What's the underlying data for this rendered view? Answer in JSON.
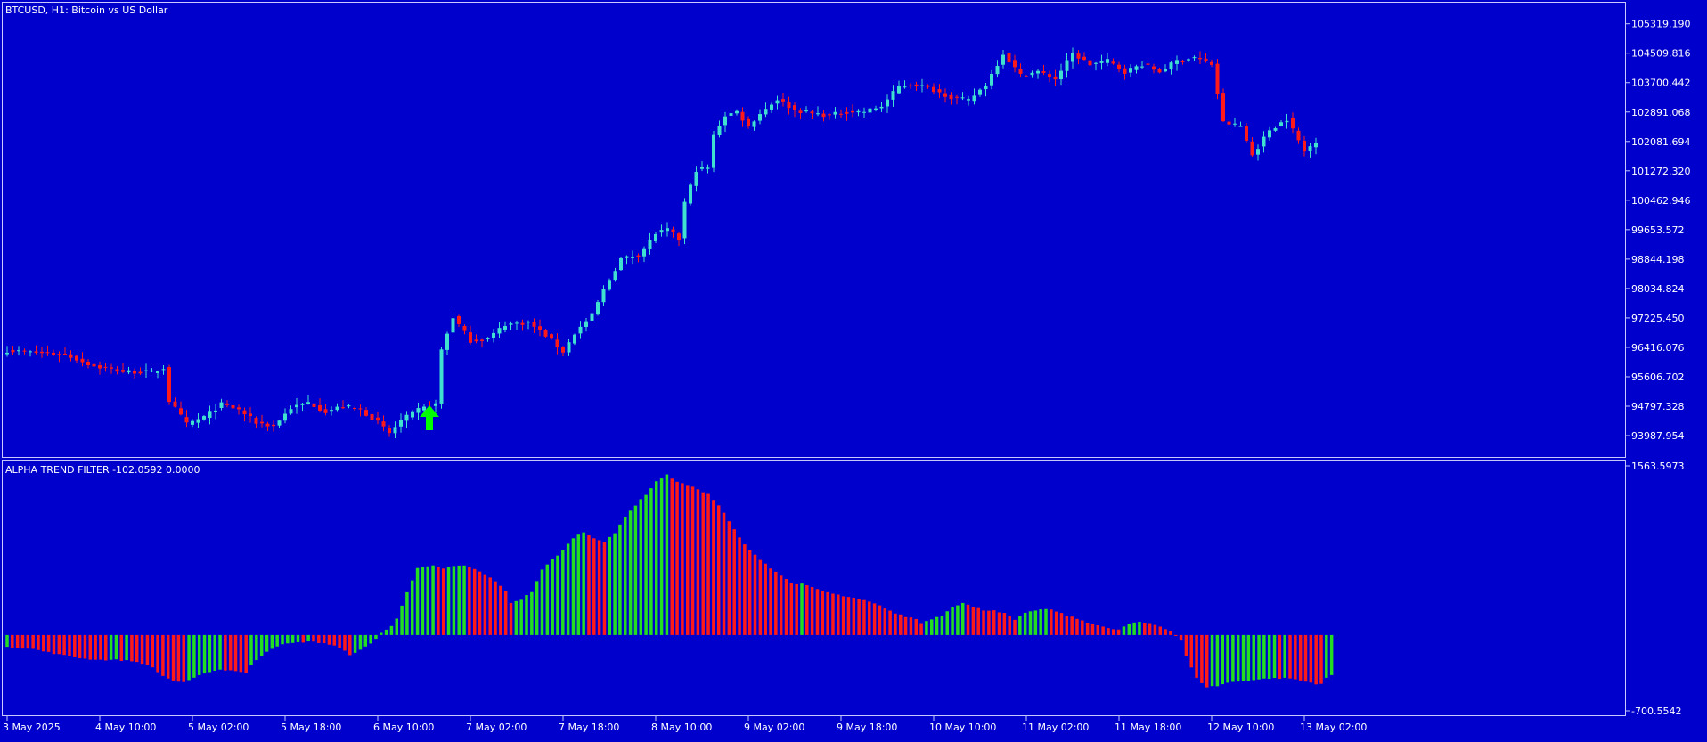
{
  "colors": {
    "background": "#0000cc",
    "frame": "#c8c8ff",
    "text": "#ffffff",
    "bull_candle": "#40e0d0",
    "bear_candle": "#ff1a1a",
    "hist_up": "#22dd22",
    "hist_down": "#ff1a1a",
    "signal_arrow": "#00ff00"
  },
  "price_panel": {
    "title": "BTCUSD, H1:  Bitcoin vs US Dollar"
  },
  "indicator_panel": {
    "title": "ALPHA TREND FILTER -102.0592 0.0000"
  },
  "chart_data": [
    {
      "type": "candlestick",
      "title": "BTCUSD, H1:  Bitcoin vs US Dollar",
      "ylim": [
        93400,
        105900
      ],
      "y_tick_labels": [
        "105319.190",
        "104509.816",
        "103700.442",
        "102891.068",
        "102081.694",
        "101272.320",
        "100462.946",
        "99653.572",
        "98844.198",
        "98034.824",
        "97225.450",
        "96416.076",
        "95606.702",
        "94797.328",
        "93987.954"
      ],
      "x_tick_labels": [
        "3 May 2025",
        "4 May 10:00",
        "5 May 02:00",
        "5 May 18:00",
        "6 May 10:00",
        "7 May 02:00",
        "7 May 18:00",
        "8 May 10:00",
        "9 May 02:00",
        "9 May 18:00",
        "10 May 10:00",
        "11 May 02:00",
        "11 May 18:00",
        "12 May 10:00",
        "13 May 02:00"
      ],
      "x_tick_candle_index": [
        0,
        16,
        32,
        48,
        64,
        80,
        96,
        112,
        128,
        144,
        160,
        176,
        192,
        208,
        224
      ],
      "close_anchors": [
        [
          0,
          96330
        ],
        [
          5,
          96270
        ],
        [
          10,
          96220
        ],
        [
          15,
          95900
        ],
        [
          20,
          95750
        ],
        [
          25,
          95730
        ],
        [
          27,
          95850
        ],
        [
          28,
          94950
        ],
        [
          31,
          94300
        ],
        [
          34,
          94500
        ],
        [
          37,
          94850
        ],
        [
          40,
          94700
        ],
        [
          43,
          94350
        ],
        [
          46,
          94250
        ],
        [
          49,
          94750
        ],
        [
          52,
          94900
        ],
        [
          55,
          94650
        ],
        [
          58,
          94800
        ],
        [
          61,
          94700
        ],
        [
          64,
          94350
        ],
        [
          66,
          94050
        ],
        [
          68,
          94400
        ],
        [
          71,
          94700
        ],
        [
          74,
          94850
        ],
        [
          75,
          96350
        ],
        [
          77,
          97250
        ],
        [
          80,
          96600
        ],
        [
          83,
          96650
        ],
        [
          86,
          97050
        ],
        [
          90,
          97100
        ],
        [
          93,
          96750
        ],
        [
          96,
          96300
        ],
        [
          98,
          96800
        ],
        [
          101,
          97300
        ],
        [
          103,
          98000
        ],
        [
          106,
          98850
        ],
        [
          109,
          98950
        ],
        [
          112,
          99550
        ],
        [
          114,
          99650
        ],
        [
          116,
          99400
        ],
        [
          117,
          100400
        ],
        [
          119,
          101300
        ],
        [
          121,
          101350
        ],
        [
          122,
          102250
        ],
        [
          124,
          102800
        ],
        [
          126,
          102900
        ],
        [
          128,
          102500
        ],
        [
          130,
          102850
        ],
        [
          133,
          103250
        ],
        [
          136,
          102950
        ],
        [
          139,
          102850
        ],
        [
          142,
          102800
        ],
        [
          145,
          102900
        ],
        [
          148,
          102900
        ],
        [
          151,
          103050
        ],
        [
          154,
          103600
        ],
        [
          157,
          103650
        ],
        [
          160,
          103500
        ],
        [
          163,
          103300
        ],
        [
          166,
          103200
        ],
        [
          169,
          103650
        ],
        [
          172,
          104500
        ],
        [
          175,
          103900
        ],
        [
          178,
          104000
        ],
        [
          181,
          103800
        ],
        [
          184,
          104500
        ],
        [
          187,
          104200
        ],
        [
          190,
          104300
        ],
        [
          193,
          104000
        ],
        [
          196,
          104200
        ],
        [
          199,
          104000
        ],
        [
          202,
          104300
        ],
        [
          205,
          104400
        ],
        [
          208,
          104200
        ],
        [
          210,
          102600
        ],
        [
          213,
          102500
        ],
        [
          215,
          101700
        ],
        [
          218,
          102400
        ],
        [
          221,
          102700
        ],
        [
          224,
          101800
        ],
        [
          226,
          102100
        ]
      ],
      "buy_arrow_candle_index": 72
    },
    {
      "type": "histogram",
      "title": "ALPHA TREND FILTER -102.0592 0.0000",
      "series_value": -102.0592,
      "zero_line_value": 0.0,
      "ylim": [
        -700.5542,
        1563.5973
      ],
      "y_tick_labels": [
        "1563.5973",
        "-700.5542"
      ],
      "value_anchors": [
        [
          0,
          -105
        ],
        [
          5,
          -130
        ],
        [
          10,
          -180
        ],
        [
          15,
          -220
        ],
        [
          18,
          -230
        ],
        [
          21,
          -230
        ],
        [
          24,
          -240
        ],
        [
          26,
          -260
        ],
        [
          28,
          -300
        ],
        [
          30,
          -380
        ],
        [
          32,
          -420
        ],
        [
          34,
          -440
        ],
        [
          36,
          -400
        ],
        [
          38,
          -350
        ],
        [
          41,
          -320
        ],
        [
          44,
          -330
        ],
        [
          46,
          -350
        ],
        [
          47,
          -280
        ],
        [
          48,
          -230
        ],
        [
          50,
          -150
        ],
        [
          52,
          -100
        ],
        [
          54,
          -80
        ],
        [
          58,
          -60
        ],
        [
          61,
          -75
        ],
        [
          63,
          -100
        ],
        [
          65,
          -150
        ],
        [
          66,
          -180
        ],
        [
          68,
          -140
        ],
        [
          70,
          -80
        ],
        [
          72,
          20
        ],
        [
          74,
          80
        ],
        [
          75,
          150
        ],
        [
          77,
          400
        ],
        [
          79,
          620
        ],
        [
          82,
          640
        ],
        [
          84,
          610
        ],
        [
          86,
          640
        ],
        [
          88,
          640
        ],
        [
          90,
          610
        ],
        [
          92,
          560
        ],
        [
          94,
          500
        ],
        [
          96,
          400
        ],
        [
          97,
          300
        ],
        [
          99,
          330
        ],
        [
          101,
          400
        ],
        [
          103,
          600
        ],
        [
          105,
          700
        ],
        [
          107,
          780
        ],
        [
          109,
          900
        ],
        [
          111,
          950
        ],
        [
          113,
          900
        ],
        [
          115,
          860
        ],
        [
          117,
          940
        ],
        [
          119,
          1100
        ],
        [
          121,
          1200
        ],
        [
          123,
          1300
        ],
        [
          125,
          1420
        ],
        [
          127,
          1480
        ],
        [
          129,
          1420
        ],
        [
          131,
          1380
        ],
        [
          133,
          1350
        ],
        [
          135,
          1300
        ],
        [
          137,
          1200
        ],
        [
          139,
          1050
        ],
        [
          141,
          900
        ],
        [
          143,
          780
        ],
        [
          145,
          700
        ],
        [
          147,
          620
        ],
        [
          149,
          550
        ],
        [
          151,
          480
        ],
        [
          153,
          470
        ],
        [
          155,
          440
        ],
        [
          157,
          410
        ],
        [
          159,
          380
        ],
        [
          161,
          360
        ],
        [
          163,
          340
        ],
        [
          165,
          320
        ],
        [
          167,
          290
        ],
        [
          169,
          250
        ],
        [
          171,
          200
        ],
        [
          173,
          170
        ],
        [
          175,
          150
        ],
        [
          176,
          110
        ],
        [
          178,
          150
        ],
        [
          180,
          180
        ],
        [
          182,
          260
        ],
        [
          184,
          300
        ],
        [
          186,
          260
        ],
        [
          188,
          230
        ],
        [
          190,
          230
        ],
        [
          192,
          200
        ],
        [
          194,
          140
        ],
        [
          196,
          200
        ],
        [
          198,
          230
        ],
        [
          200,
          240
        ],
        [
          202,
          220
        ],
        [
          204,
          180
        ],
        [
          206,
          150
        ],
        [
          208,
          120
        ],
        [
          210,
          90
        ],
        [
          212,
          60
        ],
        [
          214,
          50
        ],
        [
          216,
          100
        ],
        [
          218,
          120
        ],
        [
          220,
          110
        ],
        [
          222,
          80
        ],
        [
          224,
          40
        ],
        [
          226,
          -50
        ],
        [
          227,
          -200
        ],
        [
          229,
          -400
        ],
        [
          231,
          -480
        ],
        [
          233,
          -470
        ],
        [
          235,
          -440
        ],
        [
          237,
          -430
        ],
        [
          239,
          -420
        ],
        [
          241,
          -410
        ],
        [
          243,
          -400
        ],
        [
          245,
          -400
        ],
        [
          247,
          -400
        ],
        [
          249,
          -420
        ],
        [
          251,
          -440
        ],
        [
          252,
          -450
        ],
        [
          253,
          -450
        ],
        [
          254,
          -400
        ],
        [
          255,
          -370
        ]
      ],
      "color_rule": "green if rising versus previous bar, red if falling"
    }
  ]
}
